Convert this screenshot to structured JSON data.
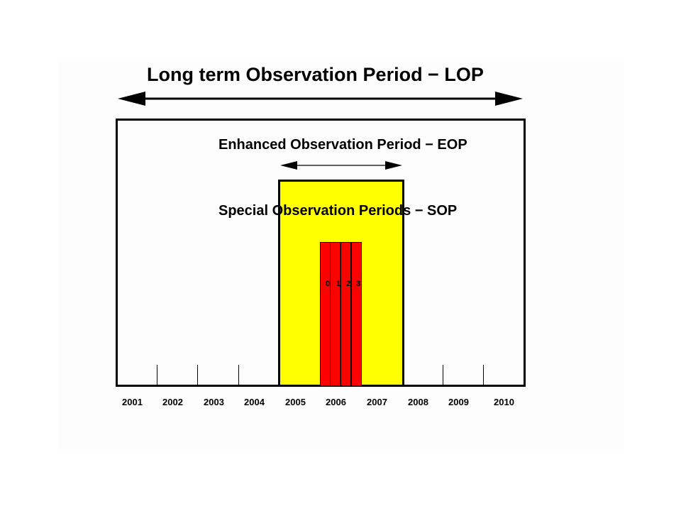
{
  "titles": {
    "lop": "Long term Observation Period − LOP",
    "eop": "Enhanced Observation Period − EOP",
    "sop": "Special Observation Periods − SOP"
  },
  "sop_labels": [
    "0",
    "1",
    "2",
    "3"
  ],
  "years": [
    "2001",
    "2002",
    "2003",
    "2004",
    "2005",
    "2006",
    "2007",
    "2008",
    "2009",
    "2010"
  ],
  "colors": {
    "eop_fill": "#ffff00",
    "sop_fill": "#ff0000",
    "outline": "#000000",
    "background": "#fdfdfd"
  }
}
